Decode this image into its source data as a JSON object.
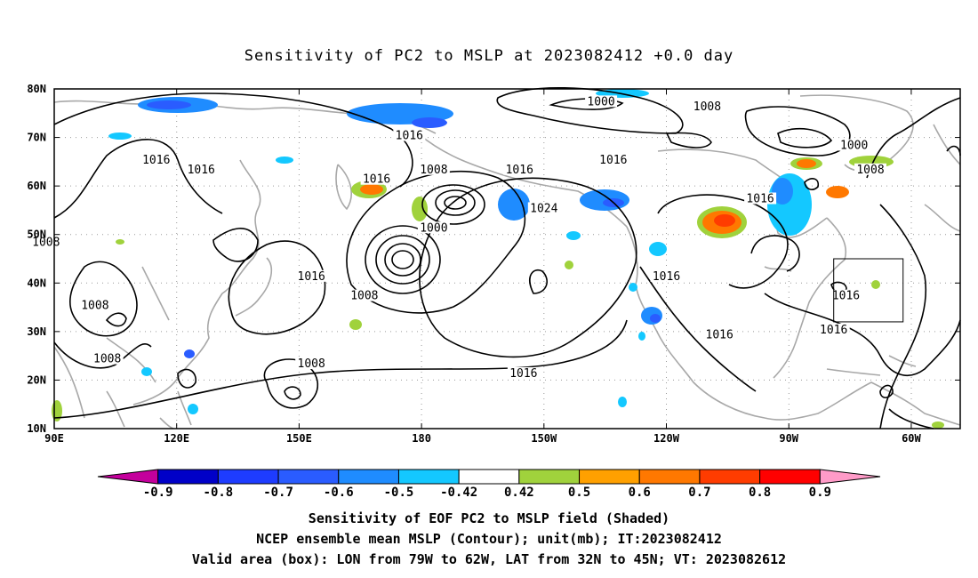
{
  "title": "Sensitivity of PC2 to MSLP at 2023082412 +0.0 day",
  "lon_ticks": [
    "90E",
    "120E",
    "150E",
    "180",
    "150W",
    "120W",
    "90W",
    "60W"
  ],
  "lat_ticks": [
    "80N",
    "70N",
    "60N",
    "50N",
    "40N",
    "30N",
    "20N",
    "10N"
  ],
  "extent": {
    "lon_min": 90,
    "lon_max": 312,
    "lat_min": 10,
    "lat_max": 80
  },
  "colorbar": {
    "labels": [
      "-0.9",
      "-0.8",
      "-0.7",
      "-0.6",
      "-0.5",
      "-0.42",
      "0.42",
      "0.5",
      "0.6",
      "0.7",
      "0.8",
      "0.9"
    ],
    "colors": [
      "#c4009c",
      "#0000c8",
      "#1e3cff",
      "#2a5cff",
      "#1f8cff",
      "#14c8ff",
      "#ffffff",
      "#a0d23c",
      "#ffa000",
      "#ff7800",
      "#ff3c00",
      "#ff0000",
      "#ff9bc8"
    ]
  },
  "contour_labels": [
    {
      "text": "1000",
      "lon": 224,
      "lat": 77
    },
    {
      "text": "1008",
      "lon": 250,
      "lat": 76
    },
    {
      "text": "1000",
      "lon": 286,
      "lat": 68
    },
    {
      "text": "1008",
      "lon": 290,
      "lat": 63
    },
    {
      "text": "1016",
      "lon": 177,
      "lat": 70
    },
    {
      "text": "1016",
      "lon": 115,
      "lat": 65
    },
    {
      "text": "1016",
      "lon": 126,
      "lat": 63
    },
    {
      "text": "1016",
      "lon": 169,
      "lat": 61
    },
    {
      "text": "1008",
      "lon": 183,
      "lat": 63
    },
    {
      "text": "1016",
      "lon": 204,
      "lat": 63
    },
    {
      "text": "1016",
      "lon": 227,
      "lat": 65
    },
    {
      "text": "1000",
      "lon": 183,
      "lat": 51
    },
    {
      "text": "1024",
      "lon": 210,
      "lat": 55
    },
    {
      "text": "1016",
      "lon": 263,
      "lat": 57
    },
    {
      "text": "1016",
      "lon": 153,
      "lat": 41
    },
    {
      "text": "1008",
      "lon": 88,
      "lat": 48
    },
    {
      "text": "1008",
      "lon": 166,
      "lat": 37
    },
    {
      "text": "1008",
      "lon": 100,
      "lat": 35
    },
    {
      "text": "1008",
      "lon": 103,
      "lat": 24
    },
    {
      "text": "1008",
      "lon": 153,
      "lat": 23
    },
    {
      "text": "1016",
      "lon": 240,
      "lat": 41
    },
    {
      "text": "1016",
      "lon": 284,
      "lat": 37
    },
    {
      "text": "1016",
      "lon": 253,
      "lat": 29
    },
    {
      "text": "1016",
      "lon": 281,
      "lat": 30
    },
    {
      "text": "1016",
      "lon": 205,
      "lat": 21
    }
  ],
  "valid_box": {
    "lon_west": -79,
    "lon_east": -62,
    "lat_south": 32,
    "lat_north": 45
  },
  "captions": [
    "Sensitivity of EOF PC2 to MSLP field (Shaded)",
    "NCEP ensemble mean MSLP (Contour); unit(mb); IT:2023082412",
    "Valid area (box): LON from 79W to 62W, LAT from 32N to 45N; VT: 2023082612"
  ]
}
